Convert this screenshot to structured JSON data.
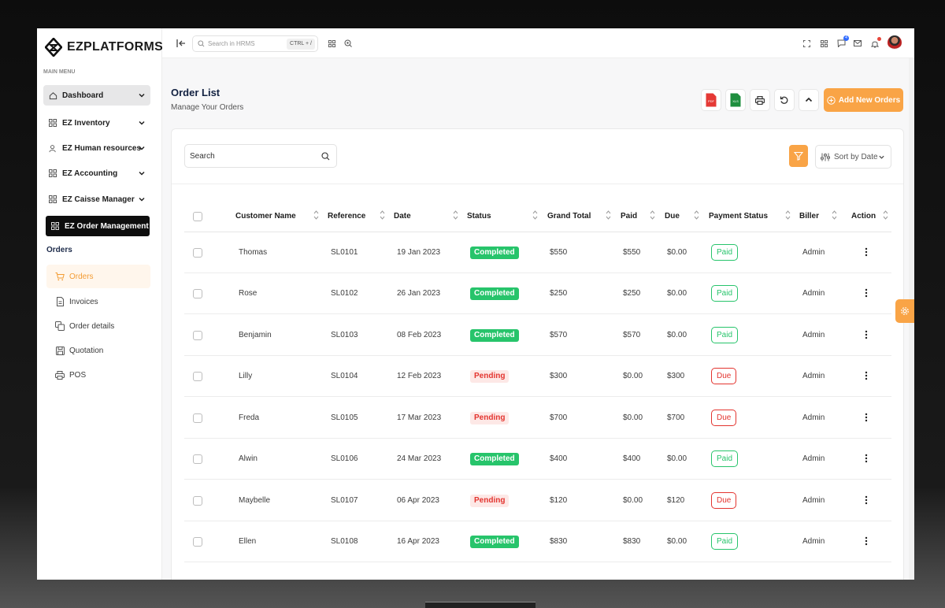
{
  "app": {
    "logo_text": "EZPLATFORMS"
  },
  "sidebar": {
    "caption": "MAIN MENU",
    "items": [
      {
        "label": "Dashboard",
        "icon": "home-icon"
      },
      {
        "label": "EZ Inventory",
        "icon": "grid-icon"
      },
      {
        "label": "EZ Human resources",
        "icon": "users-icon"
      },
      {
        "label": "EZ Accounting",
        "icon": "grid-icon"
      },
      {
        "label": "EZ Caisse Manager",
        "icon": "grid-icon"
      },
      {
        "label": "EZ Order Management",
        "icon": "grid-icon"
      }
    ],
    "group_label": "Orders",
    "sub_items": [
      {
        "label": "Orders",
        "icon": "cart-icon"
      },
      {
        "label": "Invoices",
        "icon": "file-icon"
      },
      {
        "label": "Order details",
        "icon": "copy-icon"
      },
      {
        "label": "Quotation",
        "icon": "save-icon"
      },
      {
        "label": "POS",
        "icon": "printer-icon"
      }
    ]
  },
  "topbar": {
    "search_placeholder": "Search in HRMS",
    "shortcut": "CTRL + /",
    "message_badge": "4"
  },
  "page": {
    "title": "Order List",
    "subtitle": "Manage Your Orders",
    "add_button": "Add New Orders",
    "pdf_label": "PDF",
    "xls_label": "XLS"
  },
  "toolbar": {
    "search_placeholder": "Search",
    "sort_label": "Sort by Date"
  },
  "table": {
    "headers": [
      "Customer Name",
      "Reference",
      "Date",
      "Status",
      "Grand Total",
      "Paid",
      "Due",
      "Payment Status",
      "Biller",
      "Action"
    ],
    "rows": [
      {
        "customer": "Thomas",
        "reference": "SL0101",
        "date": "19 Jan 2023",
        "status": "Completed",
        "grand_total": "$550",
        "paid": "$550",
        "due": "$0.00",
        "payment_status": "Paid",
        "biller": "Admin"
      },
      {
        "customer": "Rose",
        "reference": "SL0102",
        "date": "26 Jan 2023",
        "status": "Completed",
        "grand_total": "$250",
        "paid": "$250",
        "due": "$0.00",
        "payment_status": "Paid",
        "biller": "Admin"
      },
      {
        "customer": "Benjamin",
        "reference": "SL0103",
        "date": "08 Feb 2023",
        "status": "Completed",
        "grand_total": "$570",
        "paid": "$570",
        "due": "$0.00",
        "payment_status": "Paid",
        "biller": "Admin"
      },
      {
        "customer": "Lilly",
        "reference": "SL0104",
        "date": "12 Feb 2023",
        "status": "Pending",
        "grand_total": "$300",
        "paid": "$0.00",
        "due": "$300",
        "payment_status": "Due",
        "biller": "Admin"
      },
      {
        "customer": "Freda",
        "reference": "SL0105",
        "date": "17 Mar 2023",
        "status": "Pending",
        "grand_total": "$700",
        "paid": "$0.00",
        "due": "$700",
        "payment_status": "Due",
        "biller": "Admin"
      },
      {
        "customer": "Alwin",
        "reference": "SL0106",
        "date": "24 Mar 2023",
        "status": "Completed",
        "grand_total": "$400",
        "paid": "$400",
        "due": "$0.00",
        "payment_status": "Paid",
        "biller": "Admin"
      },
      {
        "customer": "Maybelle",
        "reference": "SL0107",
        "date": "06 Apr 2023",
        "status": "Pending",
        "grand_total": "$120",
        "paid": "$0.00",
        "due": "$120",
        "payment_status": "Due",
        "biller": "Admin"
      },
      {
        "customer": "Ellen",
        "reference": "SL0108",
        "date": "16 Apr 2023",
        "status": "Completed",
        "grand_total": "$830",
        "paid": "$830",
        "due": "$0.00",
        "payment_status": "Paid",
        "biller": "Admin"
      }
    ]
  },
  "colors": {
    "accent": "#f9a446",
    "completed": "#27c46b",
    "pending": "#e3342f",
    "nav_dark": "#0e0e0e"
  }
}
